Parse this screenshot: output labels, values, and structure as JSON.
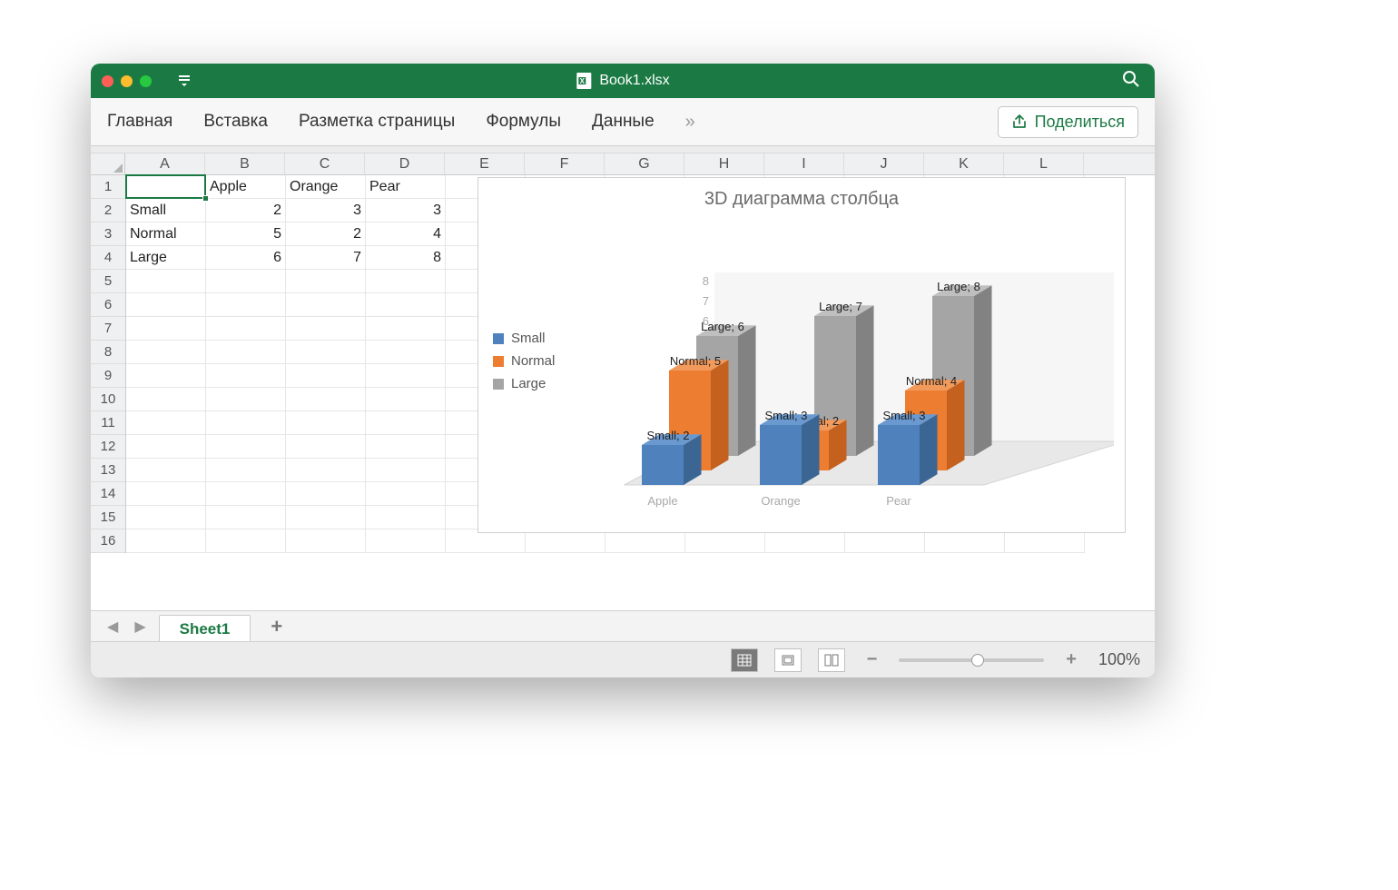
{
  "window": {
    "title": "Book1.xlsx"
  },
  "ribbon": {
    "tabs": [
      "Главная",
      "Вставка",
      "Разметка страницы",
      "Формулы",
      "Данные"
    ],
    "share": "Поделиться"
  },
  "columns": [
    "A",
    "B",
    "C",
    "D",
    "E",
    "F",
    "G",
    "H",
    "I",
    "J",
    "K",
    "L"
  ],
  "row_count": 16,
  "data": {
    "headers": [
      "",
      "Apple",
      "Orange",
      "Pear"
    ],
    "rows": [
      [
        "Small",
        2,
        3,
        3
      ],
      [
        "Normal",
        5,
        2,
        4
      ],
      [
        "Large",
        6,
        7,
        8
      ]
    ]
  },
  "selection": {
    "col": 0,
    "row": 0
  },
  "sheet_tab": "Sheet1",
  "zoom": "100%",
  "chart": {
    "type": "3d-bar",
    "title": "3D диаграмма столбца",
    "categories": [
      "Apple",
      "Orange",
      "Pear"
    ],
    "series": [
      {
        "name": "Small",
        "color": "#4f81bd",
        "side": "#3b6593",
        "top": "#6a99d0",
        "values": [
          2,
          3,
          3
        ]
      },
      {
        "name": "Normal",
        "color": "#ed7d31",
        "side": "#c5611e",
        "top": "#f29a5c",
        "values": [
          5,
          2,
          4
        ]
      },
      {
        "name": "Large",
        "color": "#a5a5a5",
        "side": "#828282",
        "top": "#bfbfbf",
        "values": [
          6,
          7,
          8
        ]
      }
    ],
    "y_axis": {
      "min": 0,
      "max": 8,
      "step": 1,
      "color": "#b0b0b0"
    },
    "floor_color": "#e8e8e8",
    "wall_color": "#f6f6f6",
    "axis_label_color": "#a8a8a8",
    "data_label_color": "#222",
    "title_fontsize": 20,
    "legend_fontsize": 15,
    "axis_fontsize": 13,
    "datalabel_fontsize": 13
  }
}
